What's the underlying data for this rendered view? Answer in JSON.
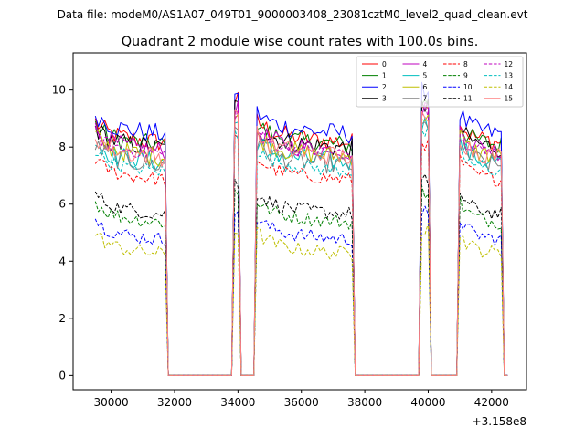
{
  "figure": {
    "suptitle": "Data file: modeM0/AS1A07_049T01_9000003408_23081cztM0_level2_quad_clean.evt",
    "title": "Quadrant 2 module wise count rates with 100.0s bins.",
    "offset_label": "+3.158e8"
  },
  "chart_data": {
    "type": "line",
    "title": "Quadrant 2 module wise count rates with 100.0s bins.",
    "xlabel": "",
    "ylabel": "",
    "x_offset": 315800000,
    "xlim": [
      28800,
      43100
    ],
    "ylim": [
      -0.5,
      11.3
    ],
    "xticks": [
      30000,
      32000,
      34000,
      36000,
      38000,
      40000,
      42000
    ],
    "xtick_labels": [
      "30000",
      "32000",
      "34000",
      "36000",
      "38000",
      "40000",
      "42000"
    ],
    "yticks": [
      0,
      2,
      4,
      6,
      8,
      10
    ],
    "ytick_labels": [
      "0",
      "2",
      "4",
      "6",
      "8",
      "10"
    ],
    "legend_position": "top-right",
    "segments": [
      {
        "start": 29500,
        "end": 31700
      },
      {
        "start": 33900,
        "end": 34000
      },
      {
        "start": 34600,
        "end": 37600
      },
      {
        "start": 39800,
        "end": 40000
      },
      {
        "start": 41000,
        "end": 42300
      }
    ],
    "series": [
      {
        "name": "0",
        "level": 8.4,
        "color": "#ff0000",
        "dash": "solid"
      },
      {
        "name": "1",
        "level": 8.3,
        "color": "#008000",
        "dash": "solid"
      },
      {
        "name": "2",
        "level": 8.7,
        "color": "#0000ff",
        "dash": "solid"
      },
      {
        "name": "3",
        "level": 8.2,
        "color": "#000000",
        "dash": "solid"
      },
      {
        "name": "4",
        "level": 8.1,
        "color": "#bf00bf",
        "dash": "solid"
      },
      {
        "name": "5",
        "level": 7.7,
        "color": "#00bfbf",
        "dash": "solid"
      },
      {
        "name": "6",
        "level": 7.9,
        "color": "#bfbf00",
        "dash": "solid"
      },
      {
        "name": "7",
        "level": 7.6,
        "color": "#808080",
        "dash": "solid"
      },
      {
        "name": "8",
        "level": 7.1,
        "color": "#ff0000",
        "dash": "dashed"
      },
      {
        "name": "9",
        "level": 5.6,
        "color": "#008000",
        "dash": "dashed"
      },
      {
        "name": "10",
        "level": 5.0,
        "color": "#0000ff",
        "dash": "dashed"
      },
      {
        "name": "11",
        "level": 5.9,
        "color": "#000000",
        "dash": "dashed"
      },
      {
        "name": "12",
        "level": 8.0,
        "color": "#bf00bf",
        "dash": "dashed"
      },
      {
        "name": "13",
        "level": 7.4,
        "color": "#00bfbf",
        "dash": "dashed"
      },
      {
        "name": "14",
        "level": 4.5,
        "color": "#bfbf00",
        "dash": "dashed"
      },
      {
        "name": "15",
        "level": 7.9,
        "color": "#ff8080",
        "dash": "solid"
      }
    ]
  }
}
